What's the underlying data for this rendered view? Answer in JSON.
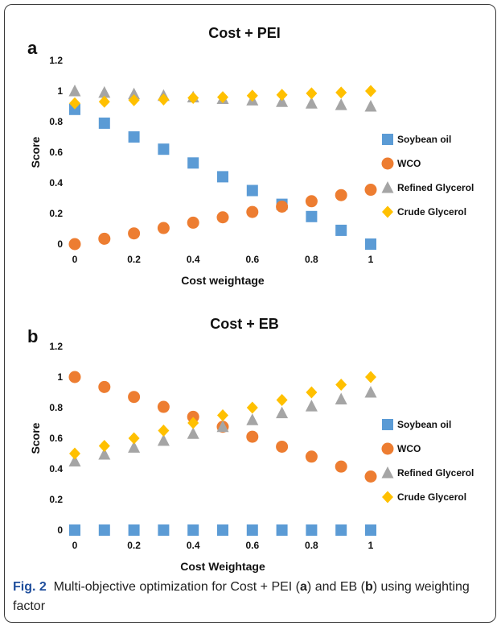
{
  "chart_data": [
    {
      "type": "scatter",
      "panel": "a",
      "title": "Cost + PEI",
      "xlabel": "Cost weightage",
      "ylabel": "Score",
      "xlim": [
        0,
        1
      ],
      "ylim": [
        0,
        1.2
      ],
      "xticks": [
        "0",
        "0.2",
        "0.4",
        "0.6",
        "0.8",
        "1"
      ],
      "yticks": [
        "0",
        "0.2",
        "0.4",
        "0.6",
        "0.8",
        "1",
        "1.2"
      ],
      "x": [
        0,
        0.1,
        0.2,
        0.3,
        0.4,
        0.5,
        0.6,
        0.7,
        0.8,
        0.9,
        1
      ],
      "legend_position": "right",
      "series": [
        {
          "name": "Soybean oil",
          "marker": "square",
          "color": "#5b9bd5",
          "values": [
            0.88,
            0.79,
            0.7,
            0.62,
            0.53,
            0.44,
            0.35,
            0.26,
            0.18,
            0.09,
            0.0
          ]
        },
        {
          "name": "WCO",
          "marker": "circle",
          "color": "#ed7d31",
          "values": [
            0.0,
            0.035,
            0.07,
            0.105,
            0.14,
            0.175,
            0.21,
            0.245,
            0.28,
            0.32,
            0.355
          ]
        },
        {
          "name": "Refined Glycerol",
          "marker": "triangle",
          "color": "#a5a5a5",
          "values": [
            1.0,
            0.99,
            0.98,
            0.97,
            0.96,
            0.95,
            0.94,
            0.93,
            0.92,
            0.91,
            0.9
          ]
        },
        {
          "name": "Crude Glycerol",
          "marker": "diamond",
          "color": "#ffc000",
          "values": [
            0.92,
            0.93,
            0.94,
            0.945,
            0.955,
            0.96,
            0.97,
            0.975,
            0.985,
            0.99,
            1.0
          ]
        }
      ]
    },
    {
      "type": "scatter",
      "panel": "b",
      "title": "Cost + EB",
      "xlabel": "Cost Weightage",
      "ylabel": "Score",
      "xlim": [
        0,
        1
      ],
      "ylim": [
        0,
        1.2
      ],
      "xticks": [
        "0",
        "0.2",
        "0.4",
        "0.6",
        "0.8",
        "1"
      ],
      "yticks": [
        "0",
        "0.2",
        "0.4",
        "0.6",
        "0.8",
        "1",
        "1.2"
      ],
      "x": [
        0,
        0.1,
        0.2,
        0.3,
        0.4,
        0.5,
        0.6,
        0.7,
        0.8,
        0.9,
        1
      ],
      "legend_position": "right",
      "series": [
        {
          "name": "Soybean oil",
          "marker": "square",
          "color": "#5b9bd5",
          "values": [
            0,
            0,
            0,
            0,
            0,
            0,
            0,
            0,
            0,
            0,
            0
          ]
        },
        {
          "name": "WCO",
          "marker": "circle",
          "color": "#ed7d31",
          "values": [
            1.0,
            0.935,
            0.87,
            0.805,
            0.74,
            0.675,
            0.61,
            0.545,
            0.48,
            0.415,
            0.35
          ]
        },
        {
          "name": "Refined Glycerol",
          "marker": "triangle",
          "color": "#a5a5a5",
          "values": [
            0.45,
            0.495,
            0.54,
            0.585,
            0.63,
            0.675,
            0.72,
            0.765,
            0.81,
            0.855,
            0.9
          ]
        },
        {
          "name": "Crude Glycerol",
          "marker": "diamond",
          "color": "#ffc000",
          "values": [
            0.5,
            0.55,
            0.6,
            0.65,
            0.7,
            0.75,
            0.8,
            0.85,
            0.9,
            0.95,
            1.0
          ]
        }
      ]
    }
  ],
  "caption": {
    "fig_label": "Fig. 2",
    "text_1": "Multi-objective optimization for Cost + PEI (",
    "bold_a": "a",
    "text_2": ") and EB (",
    "bold_b": "b",
    "text_3": ") using weighting factor"
  }
}
